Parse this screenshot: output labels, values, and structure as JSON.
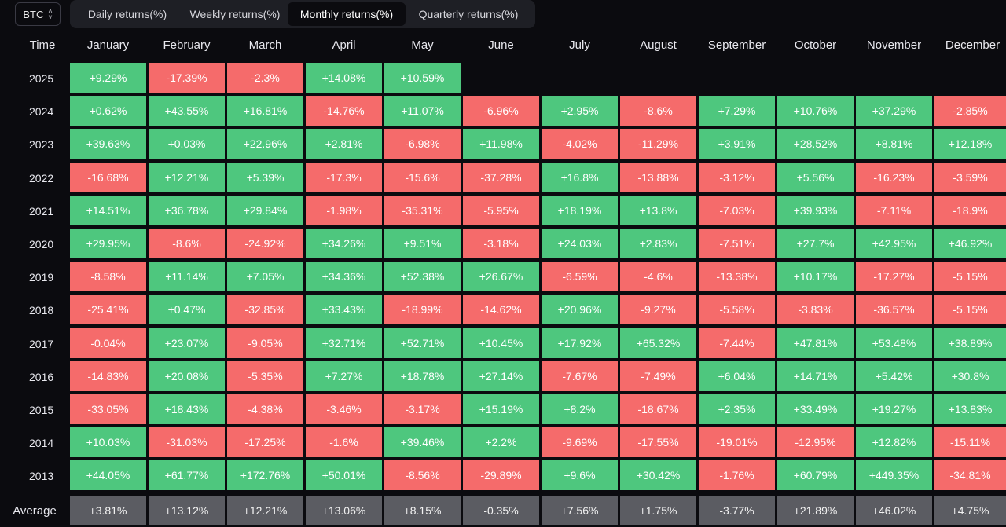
{
  "asset": {
    "label": "BTC",
    "icon": "chevron-up-down-icon"
  },
  "tabs": [
    {
      "label": "Daily returns(%)",
      "active": false
    },
    {
      "label": "Weekly returns(%)",
      "active": false
    },
    {
      "label": "Monthly returns(%)",
      "active": true
    },
    {
      "label": "Quarterly returns(%)",
      "active": false
    }
  ],
  "table": {
    "time_header": "Time",
    "months": [
      "January",
      "February",
      "March",
      "April",
      "May",
      "June",
      "July",
      "August",
      "September",
      "October",
      "November",
      "December"
    ],
    "rows": [
      {
        "year": "2025",
        "values": [
          "+9.29%",
          "-17.39%",
          "-2.3%",
          "+14.08%",
          "+10.59%",
          "",
          "",
          "",
          "",
          "",
          "",
          ""
        ]
      },
      {
        "year": "2024",
        "values": [
          "+0.62%",
          "+43.55%",
          "+16.81%",
          "-14.76%",
          "+11.07%",
          "-6.96%",
          "+2.95%",
          "-8.6%",
          "+7.29%",
          "+10.76%",
          "+37.29%",
          "-2.85%"
        ]
      },
      {
        "year": "2023",
        "values": [
          "+39.63%",
          "+0.03%",
          "+22.96%",
          "+2.81%",
          "-6.98%",
          "+11.98%",
          "-4.02%",
          "-11.29%",
          "+3.91%",
          "+28.52%",
          "+8.81%",
          "+12.18%"
        ]
      },
      {
        "year": "2022",
        "values": [
          "-16.68%",
          "+12.21%",
          "+5.39%",
          "-17.3%",
          "-15.6%",
          "-37.28%",
          "+16.8%",
          "-13.88%",
          "-3.12%",
          "+5.56%",
          "-16.23%",
          "-3.59%"
        ]
      },
      {
        "year": "2021",
        "values": [
          "+14.51%",
          "+36.78%",
          "+29.84%",
          "-1.98%",
          "-35.31%",
          "-5.95%",
          "+18.19%",
          "+13.8%",
          "-7.03%",
          "+39.93%",
          "-7.11%",
          "-18.9%"
        ]
      },
      {
        "year": "2020",
        "values": [
          "+29.95%",
          "-8.6%",
          "-24.92%",
          "+34.26%",
          "+9.51%",
          "-3.18%",
          "+24.03%",
          "+2.83%",
          "-7.51%",
          "+27.7%",
          "+42.95%",
          "+46.92%"
        ]
      },
      {
        "year": "2019",
        "values": [
          "-8.58%",
          "+11.14%",
          "+7.05%",
          "+34.36%",
          "+52.38%",
          "+26.67%",
          "-6.59%",
          "-4.6%",
          "-13.38%",
          "+10.17%",
          "-17.27%",
          "-5.15%"
        ]
      },
      {
        "year": "2018",
        "values": [
          "-25.41%",
          "+0.47%",
          "-32.85%",
          "+33.43%",
          "-18.99%",
          "-14.62%",
          "+20.96%",
          "-9.27%",
          "-5.58%",
          "-3.83%",
          "-36.57%",
          "-5.15%"
        ]
      },
      {
        "year": "2017",
        "values": [
          "-0.04%",
          "+23.07%",
          "-9.05%",
          "+32.71%",
          "+52.71%",
          "+10.45%",
          "+17.92%",
          "+65.32%",
          "-7.44%",
          "+47.81%",
          "+53.48%",
          "+38.89%"
        ]
      },
      {
        "year": "2016",
        "values": [
          "-14.83%",
          "+20.08%",
          "-5.35%",
          "+7.27%",
          "+18.78%",
          "+27.14%",
          "-7.67%",
          "-7.49%",
          "+6.04%",
          "+14.71%",
          "+5.42%",
          "+30.8%"
        ]
      },
      {
        "year": "2015",
        "values": [
          "-33.05%",
          "+18.43%",
          "-4.38%",
          "-3.46%",
          "-3.17%",
          "+15.19%",
          "+8.2%",
          "-18.67%",
          "+2.35%",
          "+33.49%",
          "+19.27%",
          "+13.83%"
        ]
      },
      {
        "year": "2014",
        "values": [
          "+10.03%",
          "-31.03%",
          "-17.25%",
          "-1.6%",
          "+39.46%",
          "+2.2%",
          "-9.69%",
          "-17.55%",
          "-19.01%",
          "-12.95%",
          "+12.82%",
          "-15.11%"
        ]
      },
      {
        "year": "2013",
        "values": [
          "+44.05%",
          "+61.77%",
          "+172.76%",
          "+50.01%",
          "-8.56%",
          "-29.89%",
          "+9.6%",
          "+30.42%",
          "-1.76%",
          "+60.79%",
          "+449.35%",
          "-34.81%"
        ]
      }
    ],
    "average": {
      "label": "Average",
      "values": [
        "+3.81%",
        "+13.12%",
        "+12.21%",
        "+13.06%",
        "+8.15%",
        "-0.35%",
        "+7.56%",
        "+1.75%",
        "-3.77%",
        "+21.89%",
        "+46.02%",
        "+4.75%"
      ]
    }
  },
  "colors": {
    "positive": "#4ec77e",
    "negative": "#f56b6b",
    "average": "#5b5c62",
    "background": "#0b0b0f"
  }
}
